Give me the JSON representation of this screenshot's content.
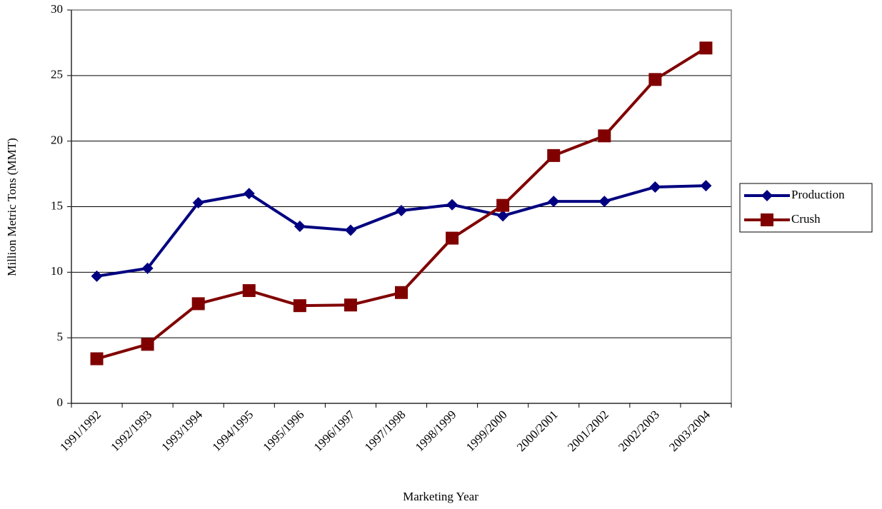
{
  "chart_data": {
    "type": "line",
    "x_label": "Marketing Year",
    "y_label": "Million Metric Tons (MMT)",
    "categories": [
      "1991/1992",
      "1992/1993",
      "1993/1994",
      "1994/1995",
      "1995/1996",
      "1996/1997",
      "1997/1998",
      "1998/1999",
      "1999/2000",
      "2000/2001",
      "2001/2002",
      "2002/2003",
      "2003/2004"
    ],
    "series": [
      {
        "name": "Production",
        "color": "#000080",
        "marker": "diamond",
        "values": [
          9.7,
          10.3,
          15.3,
          16.0,
          13.5,
          13.2,
          14.7,
          15.15,
          14.3,
          15.4,
          15.4,
          16.5,
          16.6
        ]
      },
      {
        "name": "Crush",
        "color": "#800000",
        "marker": "square",
        "values": [
          3.4,
          4.5,
          7.6,
          8.6,
          7.45,
          7.5,
          8.45,
          12.6,
          15.1,
          18.9,
          20.4,
          24.7,
          27.1
        ]
      }
    ],
    "ylim": [
      0,
      30
    ],
    "yticks": [
      0,
      5,
      10,
      15,
      20,
      25,
      30
    ],
    "grid": true,
    "legend": "right"
  }
}
